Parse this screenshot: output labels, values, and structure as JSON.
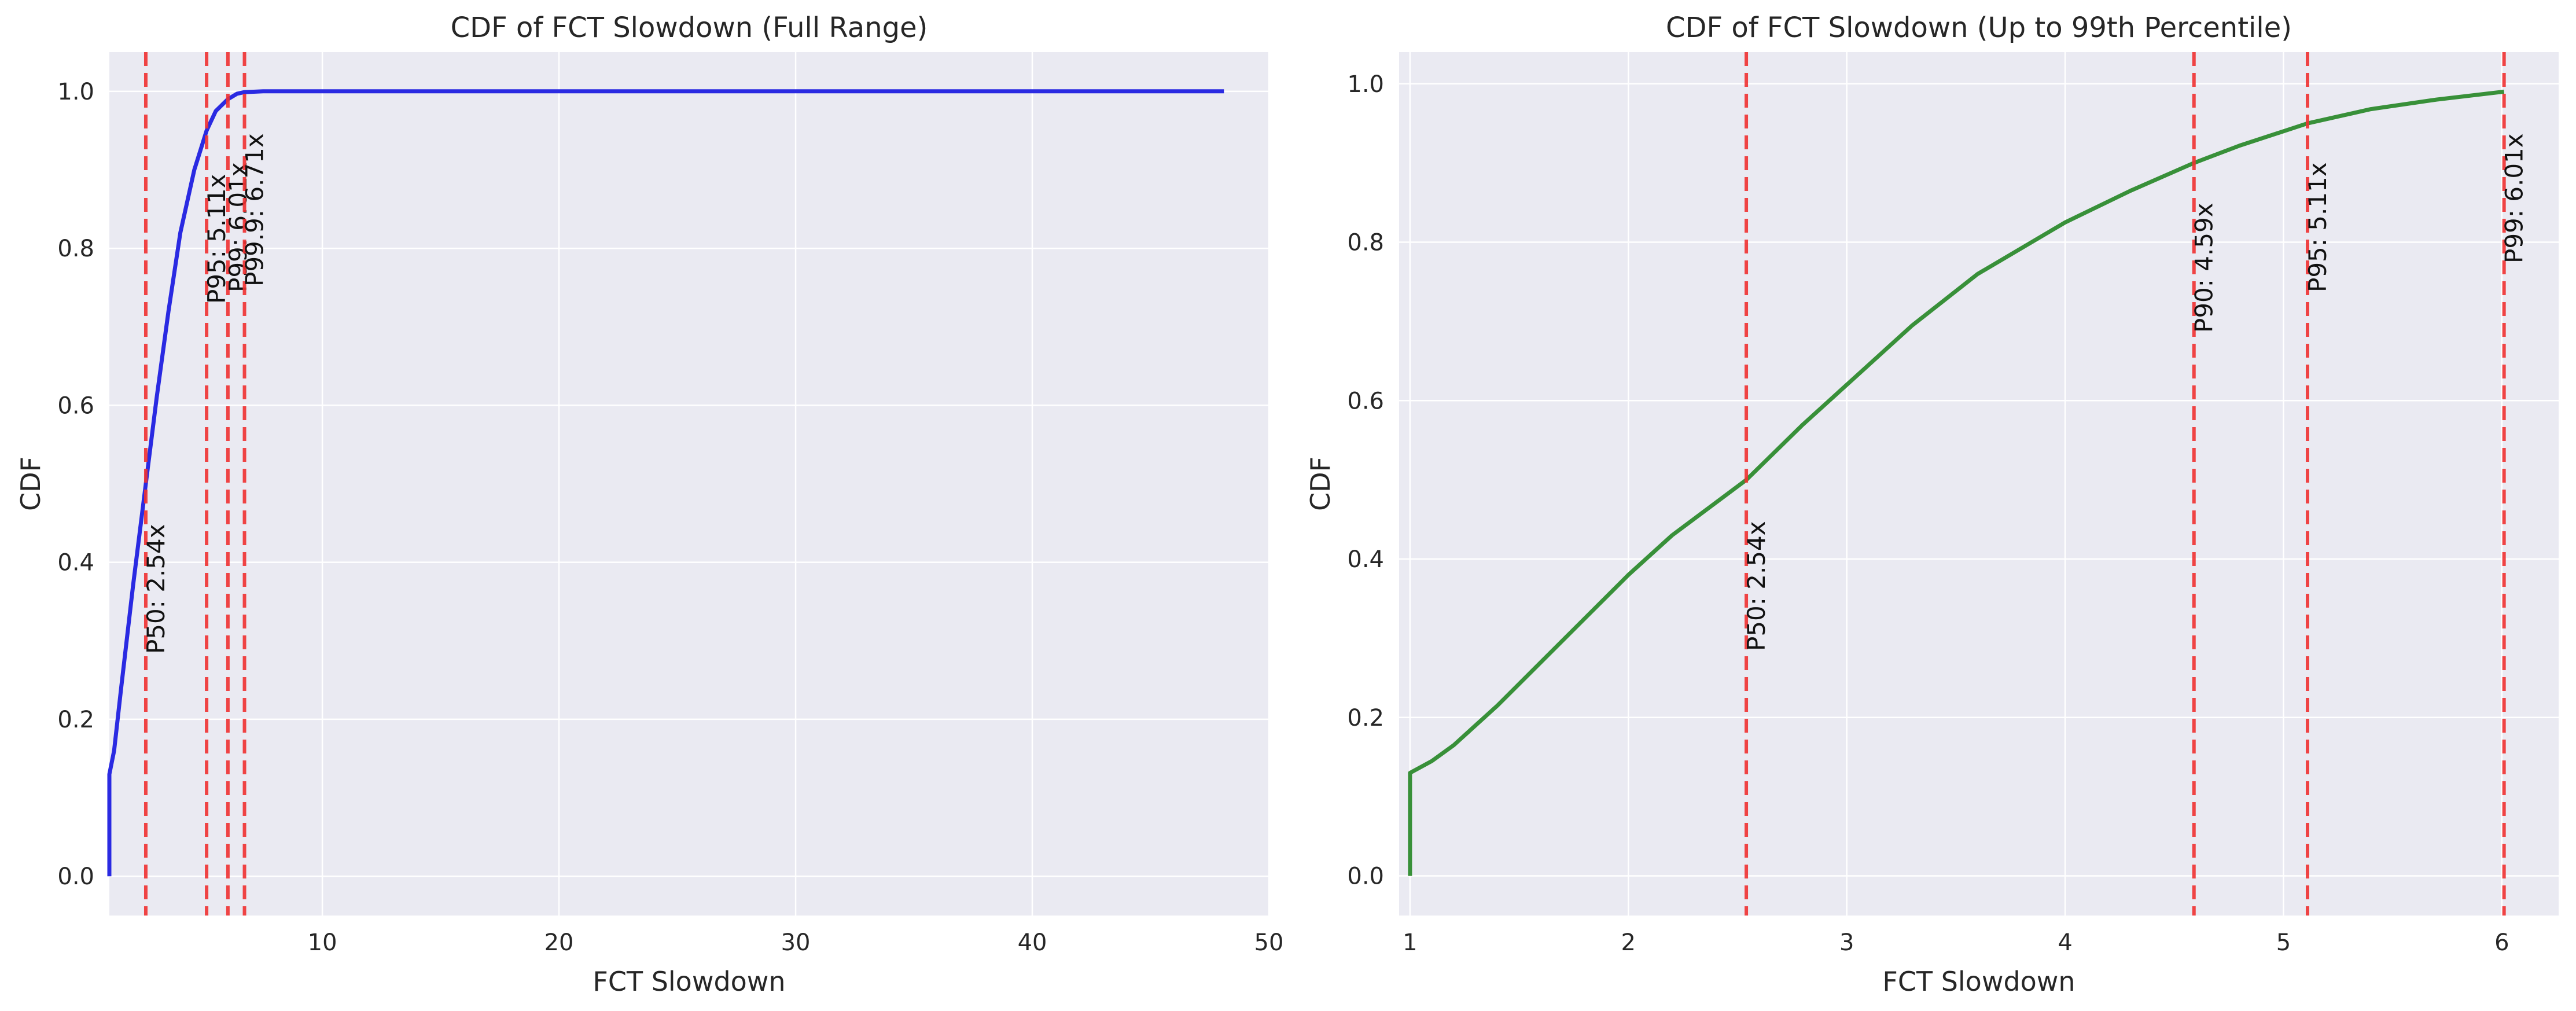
{
  "chart_data": [
    {
      "type": "line",
      "title": "CDF of FCT Slowdown (Full Range)",
      "xlabel": "FCT Slowdown",
      "ylabel": "CDF",
      "xlim": [
        1,
        50
      ],
      "ylim": [
        -0.05,
        1.05
      ],
      "xticks": [
        10,
        20,
        30,
        40,
        50
      ],
      "yticks": [
        0.0,
        0.2,
        0.4,
        0.6,
        0.8,
        1.0
      ],
      "grid": true,
      "series": [
        {
          "color": "#2020e0",
          "x": [
            1.0,
            1.0,
            1.2,
            1.5,
            2.0,
            2.54,
            3.0,
            3.5,
            4.0,
            4.59,
            5.11,
            5.5,
            6.01,
            6.4,
            6.71,
            7.5,
            10,
            20,
            30,
            40,
            48.1
          ],
          "y": [
            0.0,
            0.13,
            0.16,
            0.24,
            0.37,
            0.5,
            0.61,
            0.72,
            0.82,
            0.9,
            0.95,
            0.975,
            0.99,
            0.997,
            0.999,
            1.0,
            1.0,
            1.0,
            1.0,
            1.0,
            1.0
          ]
        }
      ],
      "percentiles": [
        {
          "x": 2.54,
          "label": "P50: 2.54x"
        },
        {
          "x": 5.11,
          "label": "P95: 5.11x"
        },
        {
          "x": 6.01,
          "label": "P99: 6.01x"
        },
        {
          "x": 6.71,
          "label": "P99.9: 6.71x"
        }
      ]
    },
    {
      "type": "line",
      "title": "CDF of FCT Slowdown (Up to 99th Percentile)",
      "xlabel": "FCT Slowdown",
      "ylabel": "CDF",
      "xlim": [
        0.95,
        6.26
      ],
      "ylim": [
        -0.05,
        1.04
      ],
      "xticks": [
        1,
        2,
        3,
        4,
        5,
        6
      ],
      "yticks": [
        0.0,
        0.2,
        0.4,
        0.6,
        0.8,
        1.0
      ],
      "grid": true,
      "series": [
        {
          "color": "#2e8b2e",
          "x": [
            1.0,
            1.0,
            1.1,
            1.2,
            1.4,
            1.6,
            1.8,
            2.0,
            2.2,
            2.54,
            2.8,
            3.0,
            3.3,
            3.6,
            4.0,
            4.3,
            4.59,
            4.8,
            5.11,
            5.4,
            5.7,
            6.01
          ],
          "y": [
            0.0,
            0.13,
            0.145,
            0.165,
            0.215,
            0.27,
            0.325,
            0.38,
            0.43,
            0.5,
            0.57,
            0.62,
            0.695,
            0.76,
            0.825,
            0.865,
            0.9,
            0.922,
            0.95,
            0.968,
            0.98,
            0.99
          ]
        }
      ],
      "percentiles": [
        {
          "x": 2.54,
          "label": "P50: 2.54x"
        },
        {
          "x": 4.59,
          "label": "P90: 4.59x"
        },
        {
          "x": 5.11,
          "label": "P95: 5.11x"
        },
        {
          "x": 6.01,
          "label": "P99: 6.01x"
        }
      ]
    }
  ]
}
